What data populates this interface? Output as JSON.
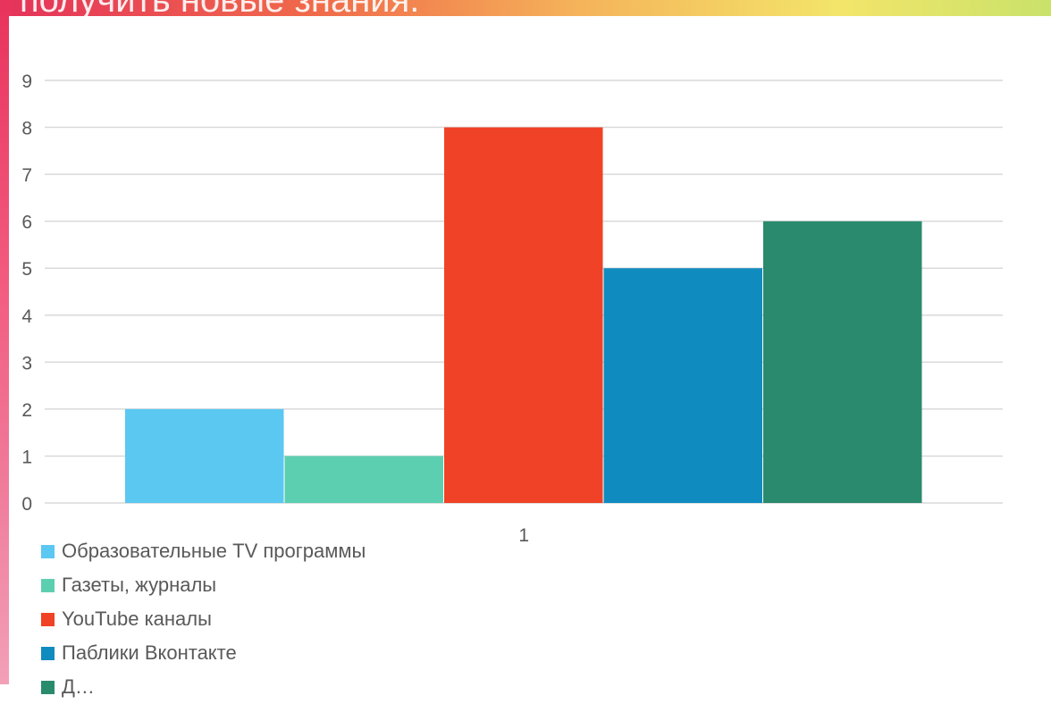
{
  "slide": {
    "title": "получить новые знания."
  },
  "chart_data": {
    "type": "bar",
    "categories": [
      "1"
    ],
    "series": [
      {
        "name": "Образовательные TV программы",
        "values": [
          2
        ],
        "color": "#5bc8f1"
      },
      {
        "name": "Газеты, журналы",
        "values": [
          1
        ],
        "color": "#5ccfb1"
      },
      {
        "name": "YouTube каналы",
        "values": [
          8
        ],
        "color": "#ef4226"
      },
      {
        "name": "Паблики Вконтакте",
        "values": [
          5
        ],
        "color": "#0f8bbf"
      },
      {
        "name": "Д…",
        "values": [
          6
        ],
        "color": "#2a8a6e"
      }
    ],
    "yticks": [
      "0",
      "1",
      "2",
      "3",
      "4",
      "5",
      "6",
      "7",
      "8",
      "9"
    ],
    "ylim": [
      0,
      9
    ],
    "grid": true,
    "legend_position": "bottom-left"
  }
}
